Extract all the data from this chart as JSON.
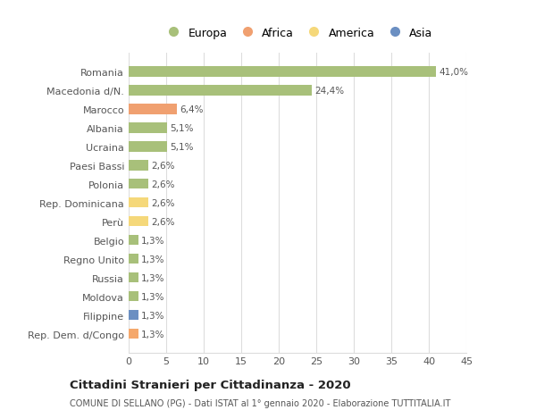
{
  "categories": [
    "Rep. Dem. d/Congo",
    "Filippine",
    "Moldova",
    "Russia",
    "Regno Unito",
    "Belgio",
    "Perù",
    "Rep. Dominicana",
    "Polonia",
    "Paesi Bassi",
    "Ucraina",
    "Albania",
    "Marocco",
    "Macedonia d/N.",
    "Romania"
  ],
  "values": [
    1.3,
    1.3,
    1.3,
    1.3,
    1.3,
    1.3,
    2.6,
    2.6,
    2.6,
    2.6,
    5.1,
    5.1,
    6.4,
    24.4,
    41.0
  ],
  "labels": [
    "1,3%",
    "1,3%",
    "1,3%",
    "1,3%",
    "1,3%",
    "1,3%",
    "2,6%",
    "2,6%",
    "2,6%",
    "2,6%",
    "5,1%",
    "5,1%",
    "6,4%",
    "24,4%",
    "41,0%"
  ],
  "colors": [
    "#F5A86C",
    "#6B8FC2",
    "#A8C07A",
    "#A8C07A",
    "#A8C07A",
    "#A8C07A",
    "#F5D87A",
    "#F5D87A",
    "#A8C07A",
    "#A8C07A",
    "#A8C07A",
    "#A8C07A",
    "#F0A070",
    "#A8C07A",
    "#A8C07A"
  ],
  "legend_labels": [
    "Europa",
    "Africa",
    "America",
    "Asia"
  ],
  "legend_colors": [
    "#A8C07A",
    "#F0A070",
    "#F5D87A",
    "#6B8FC2"
  ],
  "title": "Cittadini Stranieri per Cittadinanza - 2020",
  "subtitle": "COMUNE DI SELLANO (PG) - Dati ISTAT al 1° gennaio 2020 - Elaborazione TUTTITALIA.IT",
  "xlim": [
    0,
    45
  ],
  "xticks": [
    0,
    5,
    10,
    15,
    20,
    25,
    30,
    35,
    40,
    45
  ],
  "bg_color": "#ffffff",
  "grid_color": "#dddddd",
  "bar_height": 0.55
}
